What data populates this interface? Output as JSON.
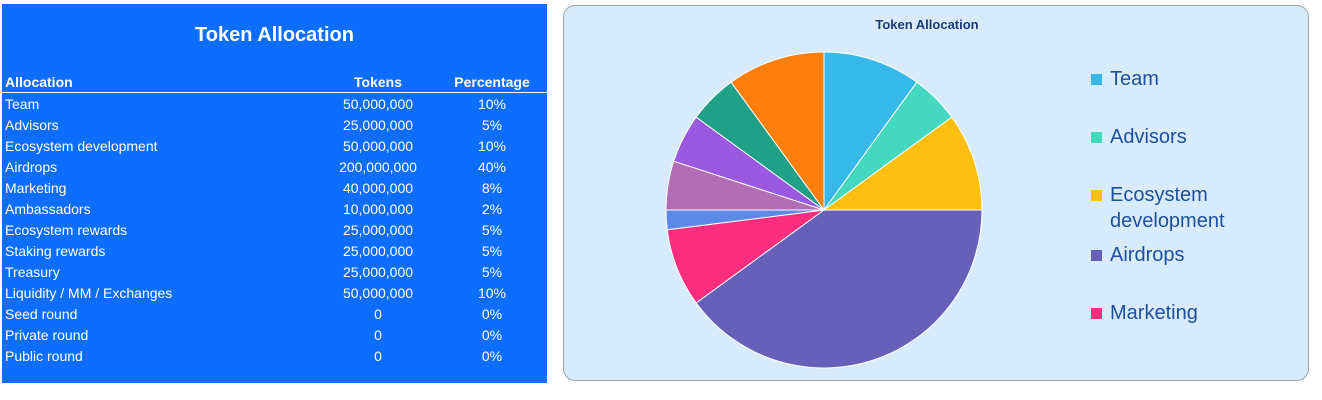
{
  "table": {
    "title": "Token Allocation",
    "headers": {
      "allocation": "Allocation",
      "tokens": "Tokens",
      "percentage": "Percentage"
    },
    "rows": [
      {
        "name": "Team",
        "tokens": "50,000,000",
        "pct": "10%"
      },
      {
        "name": "Advisors",
        "tokens": "25,000,000",
        "pct": "5%"
      },
      {
        "name": "Ecosystem development",
        "tokens": "50,000,000",
        "pct": "10%"
      },
      {
        "name": "Airdrops",
        "tokens": "200,000,000",
        "pct": "40%"
      },
      {
        "name": "Marketing",
        "tokens": "40,000,000",
        "pct": "8%"
      },
      {
        "name": "Ambassadors",
        "tokens": "10,000,000",
        "pct": "2%"
      },
      {
        "name": "Ecosystem rewards",
        "tokens": "25,000,000",
        "pct": "5%"
      },
      {
        "name": "Staking rewards",
        "tokens": "25,000,000",
        "pct": "5%"
      },
      {
        "name": "Treasury",
        "tokens": "25,000,000",
        "pct": "5%"
      },
      {
        "name": "Liquidity / MM / Exchanges",
        "tokens": "50,000,000",
        "pct": "10%"
      },
      {
        "name": "Seed round",
        "tokens": "0",
        "pct": "0%"
      },
      {
        "name": "Private round",
        "tokens": "0",
        "pct": "0%"
      },
      {
        "name": "Public round",
        "tokens": "0",
        "pct": "0%"
      }
    ]
  },
  "chart_data": {
    "type": "pie",
    "title": "Token Allocation",
    "categories": [
      "Team",
      "Advisors",
      "Ecosystem development",
      "Airdrops",
      "Marketing",
      "Ambassadors",
      "Ecosystem rewards",
      "Staking rewards",
      "Treasury",
      "Liquidity / MM / Exchanges",
      "Seed round",
      "Private round",
      "Public round"
    ],
    "values": [
      10,
      5,
      10,
      40,
      8,
      2,
      5,
      5,
      5,
      10,
      0,
      0,
      0
    ],
    "colors": [
      "#36b8e8",
      "#45d8c0",
      "#fbbf0f",
      "#6660b8",
      "#fb2d7e",
      "#5b8ae6",
      "#b26db4",
      "#9b58e0",
      "#1fa087",
      "#ff7f0e",
      "#cccccc",
      "#cccccc",
      "#cccccc"
    ],
    "legend": {
      "position": "right",
      "visible_entries": [
        {
          "label": "Team",
          "lines": [
            "Team"
          ],
          "color": "#36b8e8"
        },
        {
          "label": "Advisors",
          "lines": [
            "Advisors"
          ],
          "color": "#45d8c0"
        },
        {
          "label": "Ecosystem development",
          "lines": [
            "Ecosystem",
            "development"
          ],
          "color": "#fbbf0f"
        },
        {
          "label": "Airdrops",
          "lines": [
            "Airdrops"
          ],
          "color": "#6660b8"
        },
        {
          "label": "Marketing",
          "lines": [
            "Marketing"
          ],
          "color": "#fb2d7e"
        }
      ]
    }
  }
}
